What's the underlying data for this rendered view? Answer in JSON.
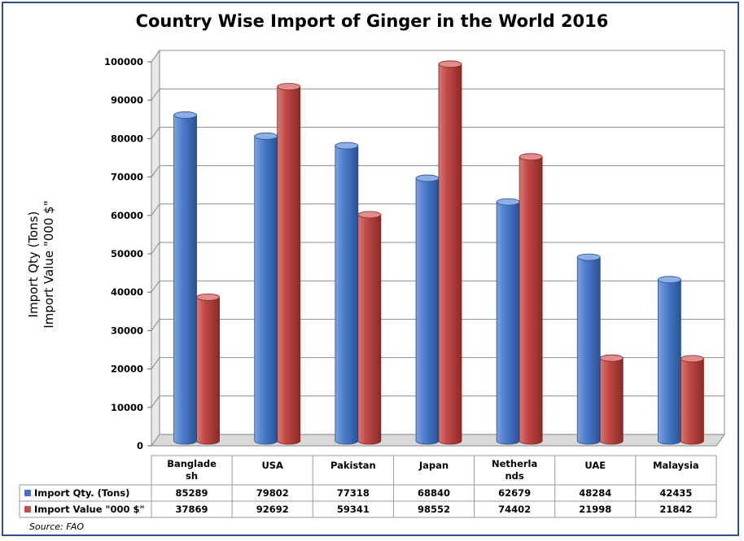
{
  "chart_data": {
    "type": "bar",
    "title": "Country Wise Import of Ginger in the World 2016",
    "ylabel_lines": [
      "Import Qty (Tons)",
      "Import Value \"000 $\""
    ],
    "ylim": [
      0,
      100000
    ],
    "yticks": [
      "0",
      "10000",
      "20000",
      "30000",
      "40000",
      "50000",
      "60000",
      "70000",
      "80000",
      "90000",
      "100000"
    ],
    "categories": [
      [
        "Banglade",
        "sh"
      ],
      [
        "USA"
      ],
      [
        "Pakistan"
      ],
      [
        "Japan"
      ],
      [
        "Netherla",
        "nds"
      ],
      [
        "UAE"
      ],
      [
        "Malaysia"
      ]
    ],
    "series": [
      {
        "name": "Import Qty. (Tons)",
        "color": "#4472c4",
        "values": [
          85289,
          79802,
          77318,
          68840,
          62679,
          48284,
          42435
        ]
      },
      {
        "name": "Import Value \"000 $\"",
        "color": "#c0504d",
        "values": [
          37869,
          92692,
          59341,
          98552,
          74402,
          21998,
          21842
        ]
      }
    ],
    "legend": "data-table",
    "grid": true
  },
  "source": "Source: FAO"
}
